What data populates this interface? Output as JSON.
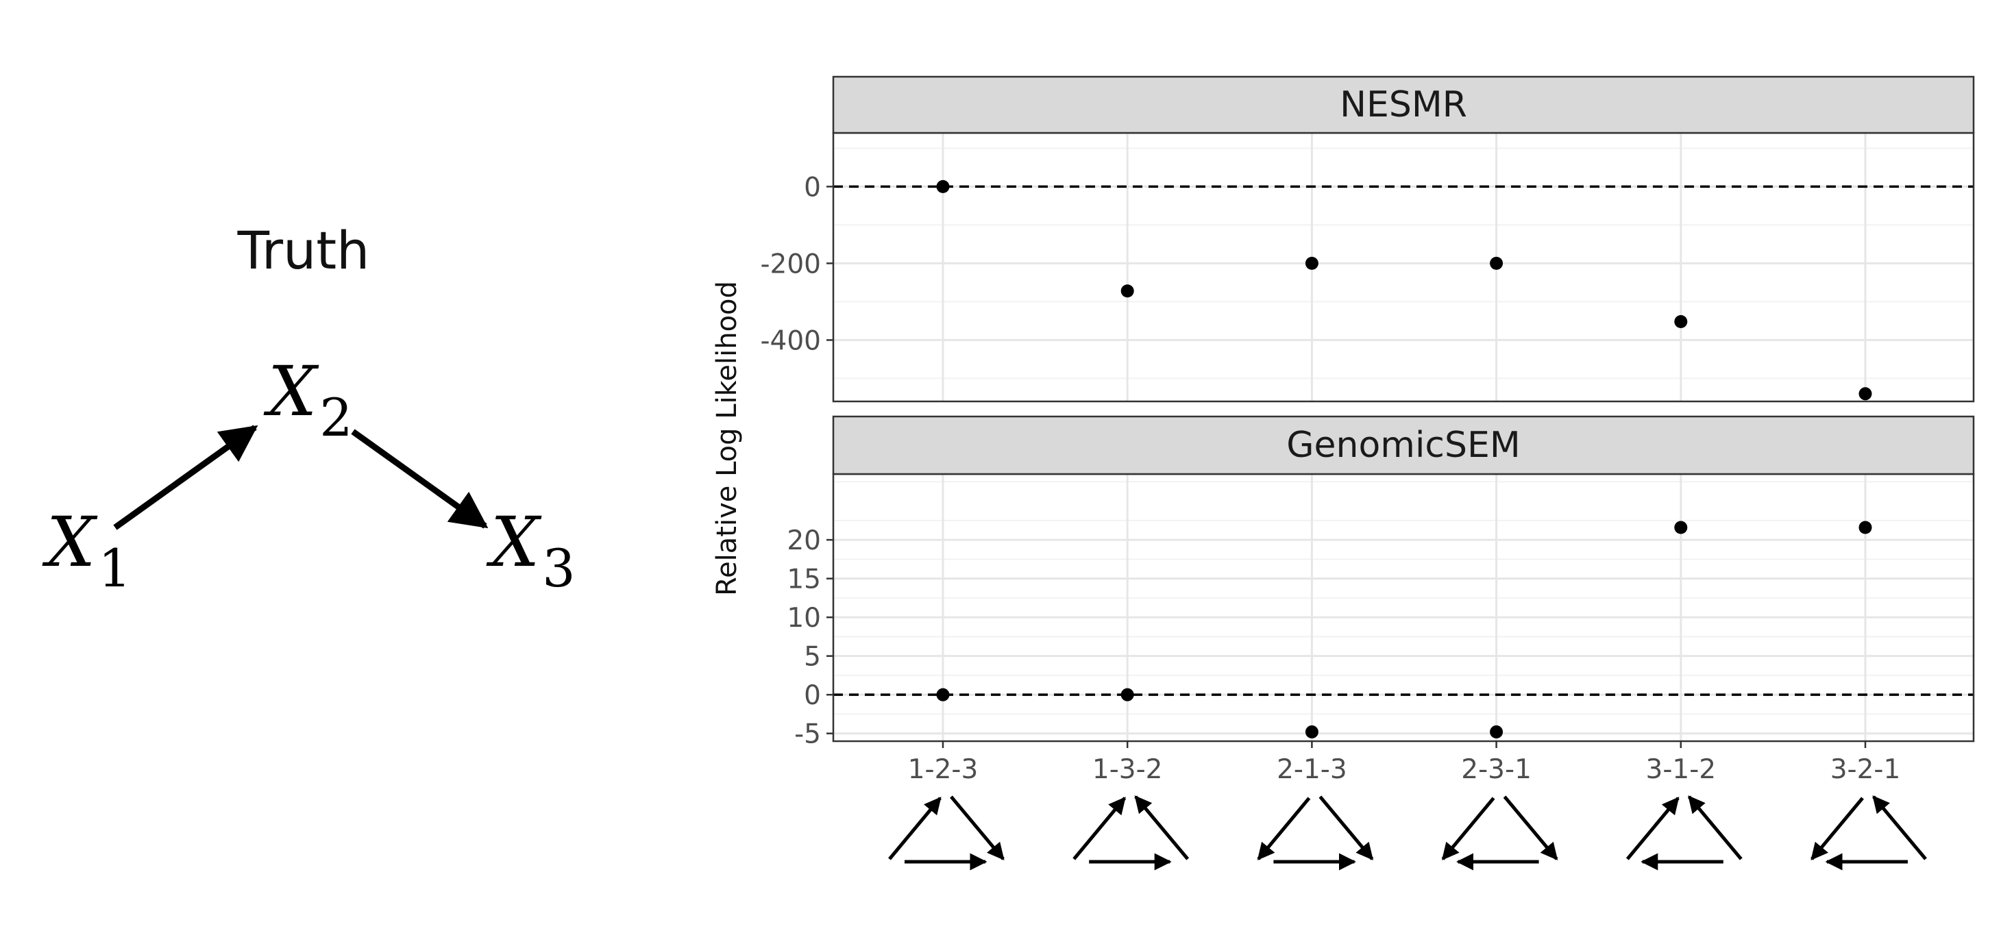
{
  "truth": {
    "title": "Truth",
    "nodes": [
      {
        "id": "x1",
        "letter": "X",
        "sub": "1"
      },
      {
        "id": "x2",
        "letter": "X",
        "sub": "2"
      },
      {
        "id": "x3",
        "letter": "X",
        "sub": "3"
      }
    ],
    "edges": [
      {
        "from": "x1",
        "to": "x2"
      },
      {
        "from": "x2",
        "to": "x3"
      }
    ]
  },
  "chart_data": {
    "type": "scatter",
    "ylabel": "Relative Log Likelihood",
    "categories": [
      "1-2-3",
      "1-3-2",
      "2-1-3",
      "2-3-1",
      "3-1-2",
      "3-2-1"
    ],
    "reference_line": 0,
    "grid": true,
    "panels": [
      {
        "name": "NESMR",
        "values": [
          0,
          -272,
          -200,
          -200,
          -352,
          -540
        ],
        "ylim": [
          -560,
          140
        ],
        "yticks": [
          0,
          -200,
          -400
        ],
        "yticklabels": [
          "0",
          "-200",
          "-400"
        ]
      },
      {
        "name": "GenomicSEM",
        "values": [
          0,
          0,
          -4.8,
          -4.8,
          21.6,
          21.6
        ],
        "ylim": [
          -6,
          28.5
        ],
        "yticks": [
          20,
          15,
          10,
          5,
          0,
          -5
        ],
        "yticklabels": [
          "20",
          "15",
          "10",
          "5",
          "0",
          "-5"
        ]
      }
    ],
    "glyphs": [
      {
        "category": "1-2-3",
        "left": "up",
        "right": "down",
        "bottom": "right"
      },
      {
        "category": "1-3-2",
        "left": "up",
        "right": "up",
        "bottom": "right"
      },
      {
        "category": "2-1-3",
        "left": "down",
        "right": "down",
        "bottom": "right"
      },
      {
        "category": "2-3-1",
        "left": "down",
        "right": "down",
        "bottom": "left"
      },
      {
        "category": "3-1-2",
        "left": "up",
        "right": "up",
        "bottom": "left"
      },
      {
        "category": "3-2-1",
        "left": "down",
        "right": "up",
        "bottom": "left"
      }
    ]
  }
}
